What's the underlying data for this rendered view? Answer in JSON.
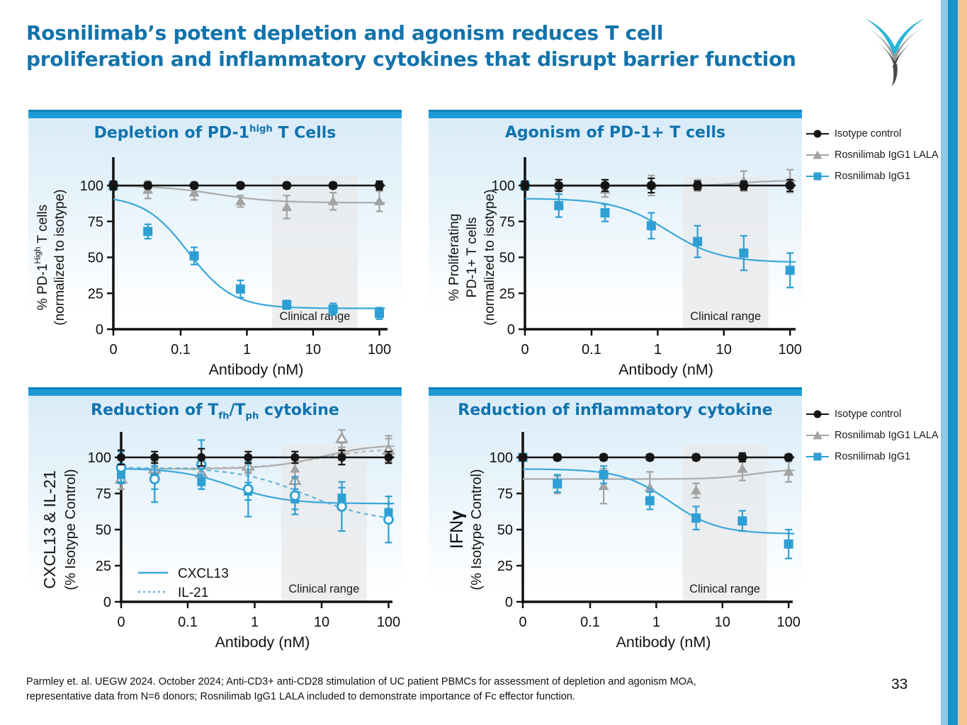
{
  "slide": {
    "title_line1": "Rosnilimab’s potent depletion and agonism reduces T cell",
    "title_line2": "proliferation and inflammatory cytokines that disrupt barrier function",
    "footer_line1": "Parmley et. al. UEGW 2024. October 2024; Anti-CD3+ anti-CD28 stimulation of UC patient PBMCs for assessment of depletion and agonism MOA,",
    "footer_line2": "representative data from N=6 donors; Rosnilimab IgG1 LALA included to demonstrate importance of Fc effector function.",
    "page_number": "33",
    "colors": {
      "title_blue": "#1273AC",
      "panel_bar_blue": "#1E9BD5",
      "panel_title_blue": "#1173AE",
      "series_blue": "#2E9FD4",
      "series_blue_light": "#63B5DC",
      "series_gray": "#A3A3A3",
      "series_black": "#151515",
      "clinical_gray": "#E8EAEB",
      "stripe_light_blue": "#8FC9E3",
      "stripe_dark_blue": "#1892C8",
      "stripe_tan": "#F6C795"
    }
  },
  "legend": {
    "items": [
      {
        "label": "Isotype control",
        "marker": "circle",
        "open": false,
        "color": "#151515"
      },
      {
        "label": "Rosnilimab IgG1 LALA",
        "marker": "triangle",
        "open": false,
        "color": "#A3A3A3"
      },
      {
        "label": "Rosnilimab IgG1",
        "marker": "square",
        "open": false,
        "color": "#2E9FD4"
      }
    ]
  },
  "chart_data": [
    {
      "id": "depletion-pd1high",
      "type": "scatter",
      "title_parts": [
        {
          "t": "Depletion of PD-1"
        },
        {
          "t": "high",
          "sup": true
        },
        {
          "t": " T Cells"
        }
      ],
      "xlabel": "Antibody (nM)",
      "ylabel_lines": [
        [
          {
            "t": "% PD-1"
          },
          {
            "t": "High",
            "sup": true
          },
          {
            "t": " T cells"
          }
        ],
        [
          {
            "t": "(normalized to isotype)"
          }
        ]
      ],
      "x_tick_labels": [
        "0",
        "0.1",
        "1",
        "10",
        "100"
      ],
      "y_tick_values": [
        0,
        25,
        50,
        75,
        100
      ],
      "x_scale": "log-with-zero",
      "ylim": [
        0,
        120
      ],
      "x_values_nM": [
        0,
        0.032,
        0.16,
        0.8,
        4,
        20,
        100
      ],
      "clinical_range": {
        "from_nM": 2.4,
        "to_nM": 47,
        "top_value": 107,
        "label": "Clinical range"
      },
      "series": [
        {
          "name": "Rosnilimab IgG1 LALA",
          "marker": "triangle",
          "open": false,
          "color": "#A3A3A3",
          "line_color": "#ABABAB",
          "dash": false,
          "values": [
            100,
            97,
            95,
            89,
            85,
            89,
            89
          ],
          "errors": [
            2,
            6,
            5,
            4,
            8,
            6,
            7
          ],
          "curve": {
            "top": 100,
            "bottom": 88,
            "ec50_nM": 0.35,
            "hill": 1.0
          }
        },
        {
          "name": "Rosnilimab IgG1",
          "marker": "square",
          "open": false,
          "color": "#2E9FD4",
          "line_color": "#3AA7D8",
          "dash": false,
          "values": [
            100,
            68,
            51,
            28,
            17,
            14,
            11
          ],
          "errors": [
            2,
            5,
            6,
            6,
            3,
            4,
            4
          ],
          "curve": {
            "top": 93,
            "bottom": 14.5,
            "ec50_nM": 0.13,
            "hill": 1.3
          }
        },
        {
          "name": "Isotype control",
          "marker": "circle",
          "open": false,
          "color": "#151515",
          "line_color": "#151515",
          "dash": false,
          "values": [
            100,
            100,
            100,
            100,
            100,
            100,
            100
          ],
          "errors": [
            3,
            2,
            2,
            2,
            2,
            2,
            3
          ],
          "curve": {
            "top": 100,
            "bottom": 100,
            "ec50_nM": 1,
            "hill": 1
          }
        }
      ]
    },
    {
      "id": "agonism-pd1pos",
      "type": "scatter",
      "title_parts": [
        {
          "t": "Agonism of PD-1+ T cells"
        }
      ],
      "xlabel": "Antibody (nM)",
      "ylabel_lines": [
        [
          {
            "t": "% Proliferating"
          }
        ],
        [
          {
            "t": "PD-1+ T cells"
          }
        ],
        [
          {
            "t": "(normalized to isotype)"
          }
        ]
      ],
      "x_tick_labels": [
        "0",
        "0.1",
        "1",
        "10",
        "100"
      ],
      "y_tick_values": [
        0,
        25,
        50,
        75,
        100
      ],
      "x_scale": "log-with-zero",
      "ylim": [
        0,
        120
      ],
      "x_values_nM": [
        0,
        0.032,
        0.16,
        0.8,
        4,
        20,
        100
      ],
      "clinical_range": {
        "from_nM": 2.4,
        "to_nM": 47,
        "top_value": 106,
        "label": "Clinical range"
      },
      "series": [
        {
          "name": "Rosnilimab IgG1 LALA",
          "marker": "triangle",
          "open": false,
          "color": "#A3A3A3",
          "line_color": "#ABABAB",
          "dash": false,
          "values": [
            100,
            99,
            97,
            100,
            100,
            103,
            103
          ],
          "errors": [
            3,
            5,
            5,
            7,
            4,
            7,
            8
          ],
          "curve": {
            "top": 99.5,
            "bottom": 103.5,
            "ec50_nM": 15,
            "hill": 1.5
          }
        },
        {
          "name": "Rosnilimab IgG1",
          "marker": "square",
          "open": false,
          "color": "#2E9FD4",
          "line_color": "#3AA7D8",
          "dash": false,
          "values": [
            100,
            86,
            81,
            72,
            61,
            53,
            41
          ],
          "errors": [
            3,
            8,
            6,
            9,
            11,
            12,
            12
          ],
          "curve": {
            "top": 91,
            "bottom": 46.5,
            "ec50_nM": 1.4,
            "hill": 1.1
          }
        },
        {
          "name": "Isotype control",
          "marker": "circle",
          "open": false,
          "color": "#151515",
          "line_color": "#151515",
          "dash": false,
          "values": [
            100,
            100,
            100,
            100,
            100,
            100,
            100
          ],
          "errors": [
            3,
            4,
            4,
            5,
            3,
            3,
            4
          ],
          "curve": {
            "top": 100,
            "bottom": 100,
            "ec50_nM": 1,
            "hill": 1
          }
        }
      ]
    },
    {
      "id": "reduction-tfh-tph-cytokine",
      "type": "scatter",
      "title_parts": [
        {
          "t": "Reduction of T"
        },
        {
          "t": "fh",
          "sub": true
        },
        {
          "t": "/T"
        },
        {
          "t": "ph",
          "sub": true
        },
        {
          "t": " cytokine"
        }
      ],
      "xlabel": "Antibody (nM)",
      "ylabel_lines": [
        [
          {
            "t": "CXCL13 & IL-21"
          }
        ],
        [
          {
            "t": "(% Isotype Control)"
          }
        ]
      ],
      "x_tick_labels": [
        "0",
        "0.1",
        "1",
        "10",
        "100"
      ],
      "y_tick_values": [
        0,
        25,
        50,
        75,
        100
      ],
      "x_scale": "log-with-zero",
      "ylim": [
        0,
        120
      ],
      "x_values_nM": [
        0,
        0.032,
        0.16,
        0.8,
        4,
        20,
        100
      ],
      "clinical_range": {
        "from_nM": 2.5,
        "to_nM": 47,
        "top_value": 108,
        "label": "Clinical range"
      },
      "inner_legend": {
        "items": [
          {
            "label": "CXCL13",
            "dash": false,
            "color": "#3AA7D8"
          },
          {
            "label": "IL-21",
            "dash": true,
            "color": "#63B5DC"
          }
        ]
      },
      "series": [
        {
          "name": "CXCL13 Rosnilimab IgG1 LALA",
          "marker": "triangle",
          "open": false,
          "color": "#A3A3A3",
          "line_color": "#ABABAB",
          "dash": false,
          "values": [
            84,
            93,
            94,
            95,
            92,
            104,
            106
          ],
          "errors": [
            6,
            5,
            5,
            5,
            6,
            6,
            9
          ],
          "curve": {
            "top": 92,
            "bottom": 109,
            "ec50_nM": 10,
            "hill": 1.1
          }
        },
        {
          "name": "IL-21 Rosnilimab IgG1 LALA",
          "marker": "triangle",
          "open": true,
          "color": "#A3A3A3",
          "line_color": "#B5B5B5",
          "dash": true,
          "values": [
            85,
            92,
            89,
            94,
            84,
            113,
            105
          ],
          "errors": [
            7,
            5,
            5,
            5,
            6,
            6,
            8
          ],
          "curve": {
            "top": 92.5,
            "bottom": 106,
            "ec50_nM": 9,
            "hill": 1.1
          }
        },
        {
          "name": "CXCL13 Rosnilimab IgG1",
          "marker": "square",
          "open": false,
          "color": "#2E9FD4",
          "line_color": "#3AA7D8",
          "dash": false,
          "values": [
            88,
            86,
            83,
            76.5,
            71,
            72,
            62
          ],
          "errors": [
            5,
            8,
            5,
            6,
            7,
            7,
            6
          ],
          "curve": {
            "top": 92.5,
            "bottom": 68,
            "ec50_nM": 0.45,
            "hill": 1.1
          }
        },
        {
          "name": "IL-21 Rosnilimab IgG1",
          "marker": "circle",
          "open": true,
          "color": "#2E9FD4",
          "line_color": "#63B5DC",
          "dash": true,
          "values": [
            93,
            85,
            95,
            78,
            73.5,
            66,
            57
          ],
          "errors": [
            11,
            16,
            17,
            19,
            13,
            17,
            16
          ],
          "curve": {
            "top": 93,
            "bottom": 55,
            "ec50_nM": 6,
            "hill": 0.85
          }
        },
        {
          "name": "Isotype control",
          "marker": "circle",
          "open": false,
          "color": "#151515",
          "line_color": "#151515",
          "dash": false,
          "values": [
            100,
            100,
            100,
            100,
            100,
            100,
            100
          ],
          "errors": [
            5,
            4,
            6,
            4,
            4,
            5,
            4
          ],
          "curve": {
            "top": 100,
            "bottom": 100,
            "ec50_nM": 1,
            "hill": 1
          }
        }
      ]
    },
    {
      "id": "reduction-inflammatory-cytokine",
      "type": "scatter",
      "title_parts": [
        {
          "t": "Reduction of inflammatory cytokine"
        }
      ],
      "xlabel": "Antibody (nM)",
      "ylabel_lines": [
        [
          {
            "t": "IFN"
          },
          {
            "t": "γ",
            "b": true
          }
        ],
        [
          {
            "t": "(% Isotype Control)"
          }
        ]
      ],
      "x_tick_labels": [
        "0",
        "0.1",
        "1",
        "10",
        "100"
      ],
      "y_tick_values": [
        0,
        25,
        50,
        75,
        100
      ],
      "x_scale": "log-with-zero",
      "ylim": [
        0,
        120
      ],
      "x_values_nM": [
        0,
        0.032,
        0.16,
        0.8,
        4,
        20,
        100
      ],
      "clinical_range": {
        "from_nM": 2.5,
        "to_nM": 47,
        "top_value": 108,
        "label": "Clinical range"
      },
      "series": [
        {
          "name": "Rosnilimab IgG1 LALA",
          "marker": "triangle",
          "open": false,
          "color": "#A3A3A3",
          "line_color": "#ABABAB",
          "dash": false,
          "values": [
            100,
            81,
            80,
            79,
            77,
            92,
            90
          ],
          "errors": [
            2,
            6,
            12,
            11,
            5,
            8,
            7
          ],
          "curve": {
            "top": 85,
            "bottom": 92,
            "ec50_nM": 30,
            "hill": 1.5
          }
        },
        {
          "name": "Rosnilimab IgG1",
          "marker": "square",
          "open": false,
          "color": "#2E9FD4",
          "line_color": "#3AA7D8",
          "dash": false,
          "values": [
            100,
            82,
            88,
            70,
            58,
            56,
            40
          ],
          "errors": [
            2,
            6,
            6,
            6,
            8,
            7,
            10
          ],
          "curve": {
            "top": 92,
            "bottom": 47,
            "ec50_nM": 1.6,
            "hill": 1.2
          }
        },
        {
          "name": "Isotype control",
          "marker": "circle",
          "open": false,
          "color": "#151515",
          "line_color": "#151515",
          "dash": false,
          "values": [
            100,
            100,
            100,
            100,
            100,
            100,
            100
          ],
          "errors": [
            2,
            2,
            2,
            2,
            2,
            3,
            2
          ],
          "curve": {
            "top": 100,
            "bottom": 100,
            "ec50_nM": 1,
            "hill": 1
          }
        }
      ]
    }
  ]
}
